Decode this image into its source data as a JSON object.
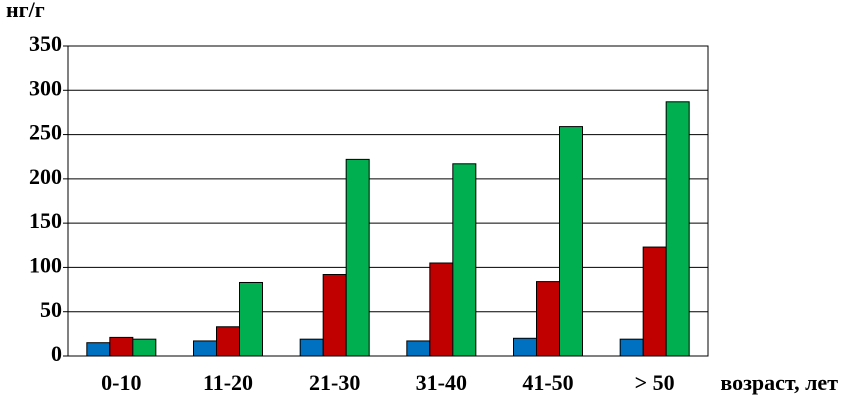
{
  "chart_data": {
    "type": "bar",
    "y_label": "нг/г",
    "x_label": "возраст, лет",
    "categories": [
      "0-10",
      "11-20",
      "21-30",
      "31-40",
      "41-50",
      "> 50"
    ],
    "series": [
      {
        "color": "#0070c0",
        "values": [
          15,
          17,
          19,
          17,
          20,
          19
        ]
      },
      {
        "color": "#c00000",
        "values": [
          21,
          33,
          92,
          105,
          84,
          123
        ]
      },
      {
        "color": "#00b050",
        "values": [
          19,
          83,
          222,
          217,
          259,
          287
        ]
      }
    ],
    "ylim": [
      0,
      350
    ],
    "yticks": [
      0,
      50,
      100,
      150,
      200,
      250,
      300,
      350
    ],
    "grid": true
  }
}
